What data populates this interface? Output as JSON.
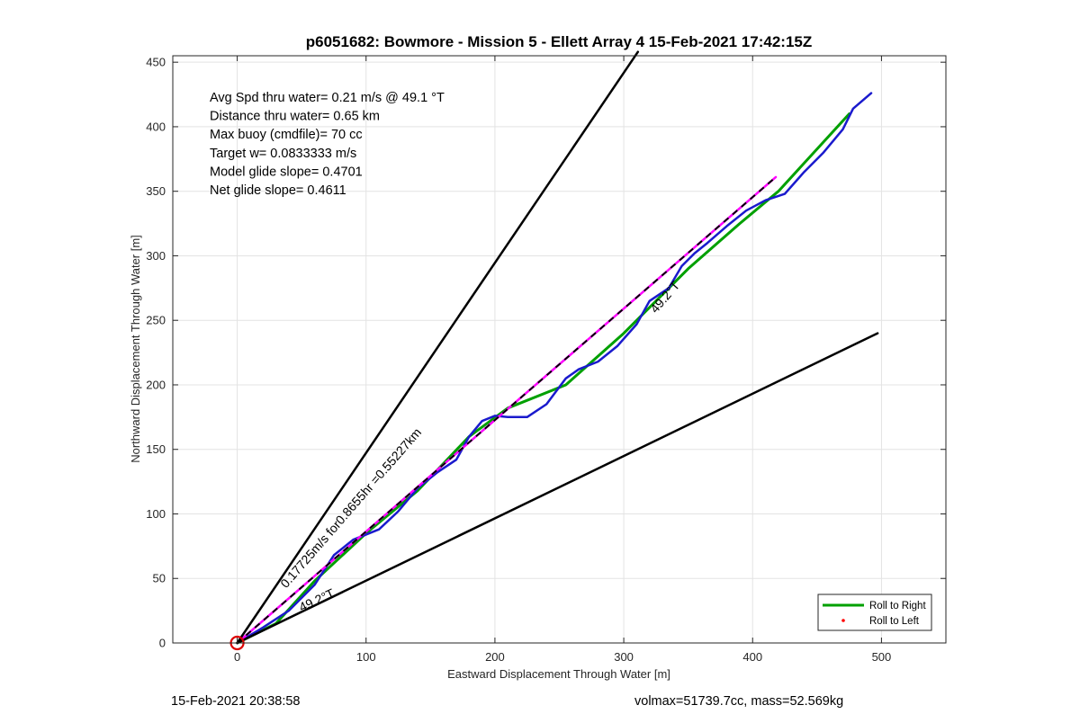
{
  "chart_data": {
    "type": "line",
    "title": "p6051682: Bowmore - Mission 5 - Ellett Array 4 15-Feb-2021 17:42:15Z",
    "xlabel": "Eastward Displacement Through Water [m]",
    "ylabel": "Northward Displacement Through Water [m]",
    "xlim": [
      -50,
      550
    ],
    "ylim": [
      0,
      455
    ],
    "xticks": [
      0,
      100,
      200,
      300,
      400,
      500
    ],
    "yticks": [
      0,
      50,
      100,
      150,
      200,
      250,
      300,
      350,
      400,
      450
    ],
    "grid": true,
    "legend_position": "bottom-right",
    "legend": [
      {
        "label": "Roll to Right",
        "color": "#00a000",
        "style": "line"
      },
      {
        "label": "Roll to Left",
        "color": "#ff0000",
        "style": "dot"
      }
    ],
    "text_box": [
      "Avg Spd thru water=  0.21 m/s @  49.1 °T",
      "Distance thru water=  0.65 km",
      "Max buoy (cmdfile)= 70 cc",
      "Target w= 0.0833333 m/s",
      "Model glide slope= 0.4701",
      "Net glide slope= 0.4611"
    ],
    "annotations": [
      {
        "text": "0.17725m/s for0.8655hr =0.55227km",
        "x": 38,
        "y": 42,
        "rotation_deg": -49
      },
      {
        "text": "49.2°T",
        "x": 50,
        "y": 24,
        "rotation_deg": -25
      },
      {
        "text": "49.2°T",
        "x": 325,
        "y": 255,
        "rotation_deg": -49
      }
    ],
    "series": [
      {
        "name": "",
        "color": "#00a000",
        "width": 3,
        "x": [
          0,
          30,
          60,
          100,
          140,
          180,
          210,
          255,
          300,
          350,
          390,
          420,
          475
        ],
        "y": [
          0,
          15,
          48,
          85,
          118,
          160,
          182,
          200,
          240,
          290,
          325,
          350,
          410
        ]
      },
      {
        "name": "",
        "color": "#1a1acd",
        "width": 2.5,
        "x": [
          0,
          20,
          40,
          60,
          75,
          90,
          110,
          125,
          140,
          155,
          170,
          180,
          190,
          200,
          210,
          225,
          240,
          255,
          265,
          280,
          295,
          310,
          320,
          335,
          345,
          355,
          365,
          380,
          395,
          410,
          425,
          440,
          455,
          470,
          478,
          492
        ],
        "y": [
          0,
          12,
          25,
          45,
          68,
          80,
          88,
          102,
          120,
          132,
          142,
          160,
          172,
          176,
          175,
          175,
          185,
          205,
          212,
          218,
          230,
          247,
          265,
          275,
          292,
          302,
          310,
          323,
          335,
          343,
          348,
          365,
          380,
          398,
          414,
          426
        ]
      },
      {
        "name": "",
        "color": "#ff00ff",
        "width": 2.5,
        "x": [
          0,
          418
        ],
        "y": [
          0,
          361
        ]
      },
      {
        "name": "",
        "color": "#000000",
        "width": 2,
        "dash": true,
        "x": [
          0,
          418
        ],
        "y": [
          0,
          361
        ]
      },
      {
        "name": "",
        "color": "#000000",
        "width": 2.5,
        "x": [
          0,
          311
        ],
        "y": [
          0,
          458
        ]
      },
      {
        "name": "",
        "color": "#000000",
        "width": 2.5,
        "x": [
          0,
          497
        ],
        "y": [
          0,
          240
        ]
      }
    ],
    "start_marker": {
      "x": 0,
      "y": 0,
      "color": "#dd0000"
    }
  },
  "footer": {
    "left": "15-Feb-2021 20:38:58",
    "right": "volmax=51739.7cc, mass=52.569kg"
  }
}
